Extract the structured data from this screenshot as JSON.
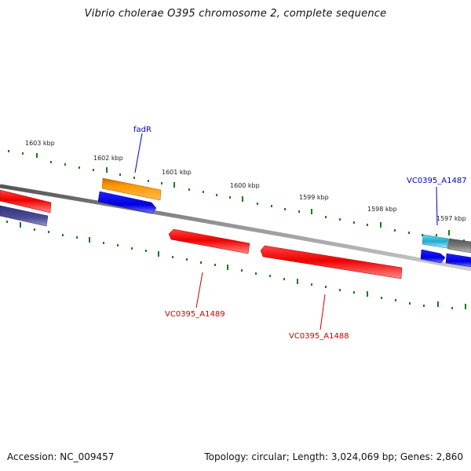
{
  "header": {
    "title": "Vibrio cholerae O395 chromosome 2, complete sequence"
  },
  "footer": {
    "accession": "Accession: NC_009457",
    "summary": "Topology: circular; Length: 3,024,069 bp; Genes: 2,860"
  },
  "map": {
    "colors": {
      "backbone": "#8c8c8c",
      "tick": "#1a7a1a",
      "red_gene": "#ee0000",
      "blue_gene": "#0000ee",
      "orange_gene": "#ff9900",
      "navy_gene": "#4d4d99",
      "cyan_gene": "#33bbdd",
      "gray_gene": "#777777",
      "label_blue": "#0000cc",
      "label_red": "#cc0000"
    },
    "scale_labels": [
      "1603 kbp",
      "1602 kbp",
      "1601 kbp",
      "1600 kbp",
      "1599 kbp",
      "1598 kbp",
      "1597 kbp"
    ],
    "gene_labels": [
      {
        "name": "fadR",
        "strand": "forward"
      },
      {
        "name": "VC0395_A1487",
        "strand": "forward"
      },
      {
        "name": "VC0395_A1489",
        "strand": "reverse"
      },
      {
        "name": "VC0395_A1488",
        "strand": "reverse"
      }
    ]
  }
}
